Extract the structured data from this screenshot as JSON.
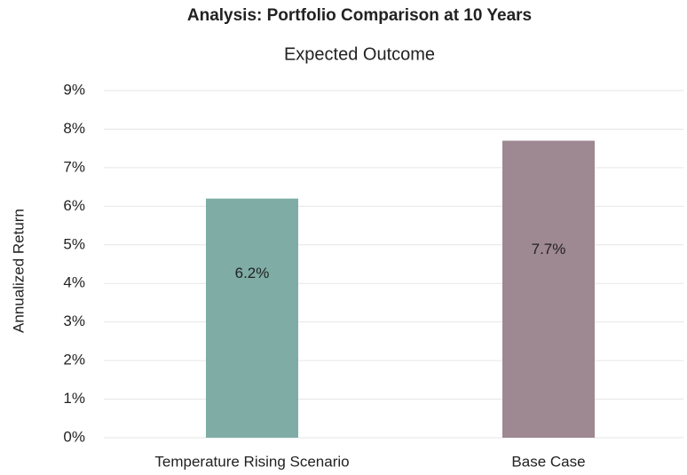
{
  "chart_data": {
    "type": "bar",
    "title": "Analysis: Portfolio Comparison at 10 Years",
    "subtitle": "Expected Outcome",
    "y_label": "Annualized Return",
    "categories": [
      "Temperature Rising Scenario",
      "Base Case"
    ],
    "values": [
      6.2,
      7.7
    ],
    "value_labels": [
      "6.2%",
      "7.7%"
    ],
    "colors": [
      "#7fada6",
      "#9e8891"
    ],
    "ylim": [
      0,
      9
    ],
    "yticks": [
      {
        "value": 0,
        "label": "0%"
      },
      {
        "value": 1,
        "label": "1%"
      },
      {
        "value": 2,
        "label": "2%"
      },
      {
        "value": 3,
        "label": "3%"
      },
      {
        "value": 4,
        "label": "4%"
      },
      {
        "value": 5,
        "label": "5%"
      },
      {
        "value": 6,
        "label": "6%"
      },
      {
        "value": 7,
        "label": "7%"
      },
      {
        "value": 8,
        "label": "8%"
      },
      {
        "value": 9,
        "label": "9%"
      }
    ],
    "grid": true
  }
}
